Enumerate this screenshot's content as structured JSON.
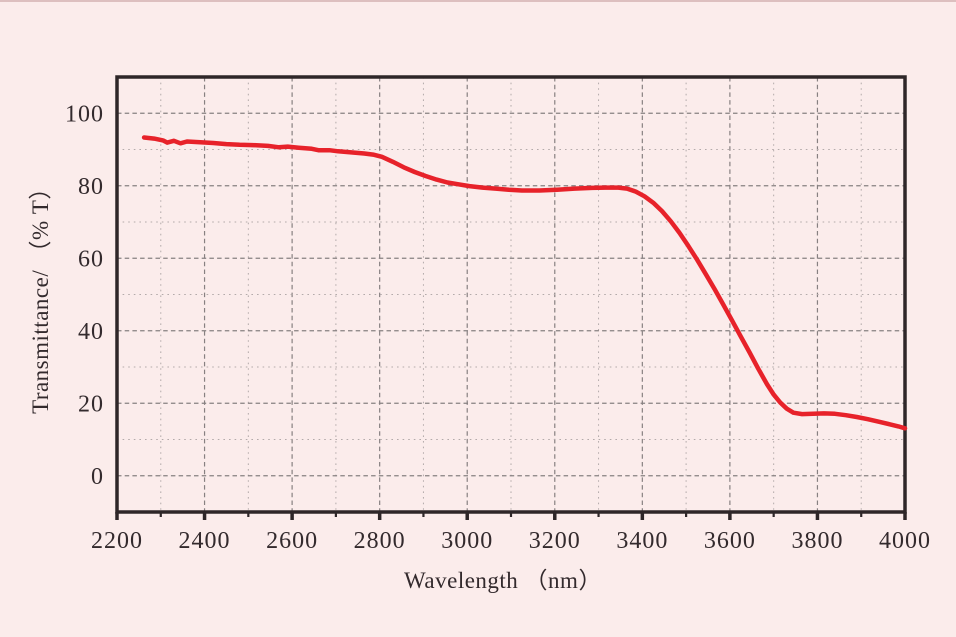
{
  "figure": {
    "background_color": "#fbeceb",
    "top_edge_color": "#ddbfbf",
    "frame_color": "#2e2628",
    "text_color": "#332a2d",
    "accent_red": "#e7222a"
  },
  "chart_data": {
    "type": "line",
    "title": "",
    "xlabel": "Wavelength （nm）",
    "ylabel": "Transmittance/ （% T）",
    "xlim": [
      2200,
      4000
    ],
    "ylim": [
      -10,
      110
    ],
    "x_major_ticks": [
      2200,
      2400,
      2600,
      2800,
      3000,
      3200,
      3400,
      3600,
      3800,
      4000
    ],
    "x_minor_step": 100,
    "y_major_ticks": [
      0,
      20,
      40,
      60,
      80,
      100
    ],
    "y_minor_step": 10,
    "grid": {
      "show": true,
      "style": "dotted",
      "major_color": "#878081",
      "minor_color": "#b3aaaa"
    },
    "legend": {
      "show": false
    },
    "series": [
      {
        "name": "transmittance-spectrum",
        "color": "#e7222a",
        "points": [
          [
            2262,
            93.3
          ],
          [
            2285,
            93.0
          ],
          [
            2305,
            92.5
          ],
          [
            2315,
            91.9
          ],
          [
            2330,
            92.4
          ],
          [
            2345,
            91.7
          ],
          [
            2360,
            92.2
          ],
          [
            2390,
            92.0
          ],
          [
            2420,
            91.8
          ],
          [
            2450,
            91.5
          ],
          [
            2480,
            91.3
          ],
          [
            2510,
            91.2
          ],
          [
            2545,
            91.0
          ],
          [
            2570,
            90.6
          ],
          [
            2590,
            90.8
          ],
          [
            2615,
            90.5
          ],
          [
            2645,
            90.2
          ],
          [
            2660,
            89.8
          ],
          [
            2685,
            89.8
          ],
          [
            2705,
            89.5
          ],
          [
            2735,
            89.2
          ],
          [
            2765,
            88.9
          ],
          [
            2785,
            88.6
          ],
          [
            2805,
            88.0
          ],
          [
            2830,
            86.6
          ],
          [
            2855,
            85.1
          ],
          [
            2880,
            83.8
          ],
          [
            2905,
            82.7
          ],
          [
            2930,
            81.7
          ],
          [
            2955,
            80.9
          ],
          [
            2980,
            80.4
          ],
          [
            3005,
            79.9
          ],
          [
            3035,
            79.5
          ],
          [
            3065,
            79.2
          ],
          [
            3095,
            78.9
          ],
          [
            3125,
            78.7
          ],
          [
            3165,
            78.7
          ],
          [
            3205,
            78.9
          ],
          [
            3245,
            79.2
          ],
          [
            3285,
            79.4
          ],
          [
            3315,
            79.5
          ],
          [
            3345,
            79.5
          ],
          [
            3365,
            79.2
          ],
          [
            3385,
            78.4
          ],
          [
            3405,
            77.1
          ],
          [
            3425,
            75.3
          ],
          [
            3445,
            73.0
          ],
          [
            3465,
            70.2
          ],
          [
            3485,
            67.0
          ],
          [
            3505,
            63.4
          ],
          [
            3525,
            59.6
          ],
          [
            3545,
            55.6
          ],
          [
            3565,
            51.5
          ],
          [
            3585,
            47.2
          ],
          [
            3605,
            42.8
          ],
          [
            3625,
            38.4
          ],
          [
            3645,
            34.0
          ],
          [
            3665,
            29.5
          ],
          [
            3685,
            25.2
          ],
          [
            3700,
            22.4
          ],
          [
            3715,
            20.2
          ],
          [
            3730,
            18.5
          ],
          [
            3745,
            17.4
          ],
          [
            3765,
            17.0
          ],
          [
            3790,
            17.1
          ],
          [
            3815,
            17.2
          ],
          [
            3840,
            17.1
          ],
          [
            3865,
            16.7
          ],
          [
            3890,
            16.2
          ],
          [
            3915,
            15.6
          ],
          [
            3940,
            14.9
          ],
          [
            3965,
            14.2
          ],
          [
            3985,
            13.6
          ],
          [
            4000,
            13.1
          ]
        ]
      }
    ]
  }
}
